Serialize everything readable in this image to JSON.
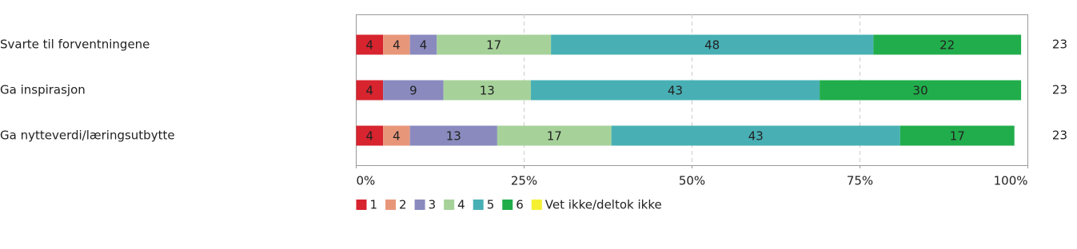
{
  "chart_data": {
    "type": "stacked-bar-horizontal",
    "categories": [
      "Svarte til forventningene",
      "Ga inspirasjon",
      "Ga nytteverdi/læringsutbytte"
    ],
    "series": [
      {
        "name": "1",
        "color": "#d7242f",
        "values": [
          4,
          4,
          4
        ]
      },
      {
        "name": "2",
        "color": "#e8967a",
        "values": [
          4,
          null,
          4
        ]
      },
      {
        "name": "3",
        "color": "#8a8abf",
        "values": [
          4,
          9,
          13
        ]
      },
      {
        "name": "4",
        "color": "#a6d29a",
        "values": [
          17,
          13,
          17
        ]
      },
      {
        "name": "5",
        "color": "#48b0b5",
        "values": [
          48,
          43,
          43
        ]
      },
      {
        "name": "6",
        "color": "#21ad4b",
        "values": [
          22,
          30,
          17
        ]
      },
      {
        "name": "Vet ikke/deltok ikke",
        "color": "#f5f032",
        "values": [
          null,
          null,
          null
        ]
      }
    ],
    "n": [
      23,
      23,
      23
    ],
    "xlim": [
      0,
      100
    ],
    "xticks": [
      {
        "value": 0,
        "label": "0%"
      },
      {
        "value": 25,
        "label": "25%"
      },
      {
        "value": 50,
        "label": "50%"
      },
      {
        "value": 75,
        "label": "75%"
      },
      {
        "value": 100,
        "label": "100%"
      }
    ],
    "grid": true
  }
}
